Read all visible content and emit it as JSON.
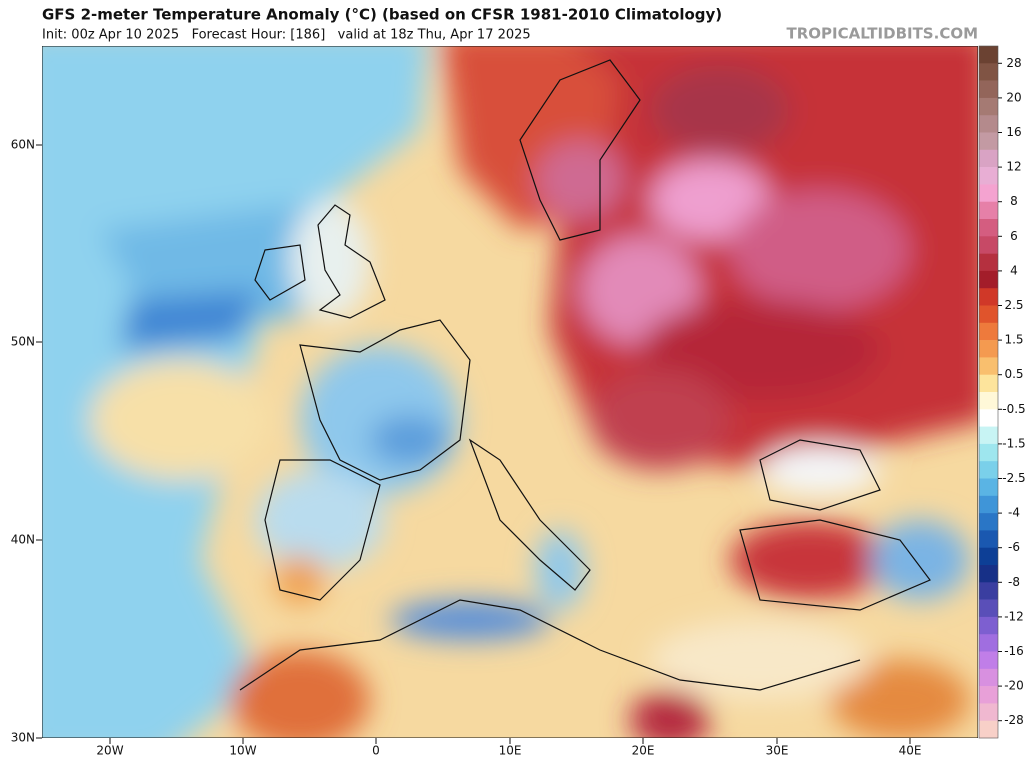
{
  "header": {
    "title": "GFS 2-meter Temperature Anomaly (°C) (based on CFSR 1981-2010 Climatology)",
    "subtitle": "Init: 00z Apr 10 2025   Forecast Hour: [186]   valid at 18z Thu, Apr 17 2025",
    "watermark": "TROPICALTIDBITS.COM"
  },
  "map": {
    "lat_labels": [
      "60N",
      "50N",
      "40N",
      "30N"
    ],
    "lon_labels": [
      "20W",
      "10W",
      "0",
      "10E",
      "20E",
      "30E",
      "40E"
    ]
  },
  "colorbar": {
    "labels": [
      "28",
      "20",
      "16",
      "12",
      "8",
      "6",
      "4",
      "2.5",
      "1.5",
      "0.5",
      "-0.5",
      "-1.5",
      "-2.5",
      "-4",
      "-6",
      "-8",
      "-12",
      "-16",
      "-20",
      "-28"
    ],
    "colors": [
      "#6b4232",
      "#805444",
      "#93655a",
      "#a57a73",
      "#b48a8c",
      "#c39aa3",
      "#d9a3c4",
      "#e8aed4",
      "#f4a3d0",
      "#e680a8",
      "#d45d80",
      "#c74966",
      "#b5303f",
      "#a31d2a",
      "#d03828",
      "#e0542c",
      "#ee7a3c",
      "#f49a50",
      "#f9bf6e",
      "#fde49c",
      "#fff8d8",
      "#ffffff",
      "#c8f4f4",
      "#9ee6ee",
      "#7ad0ea",
      "#5ab4e4",
      "#3f95d8",
      "#2a76c6",
      "#1a58b0",
      "#0d3f96",
      "#173087",
      "#3a3ea0",
      "#5a4fb8",
      "#7d5fd0",
      "#a06ee0",
      "#c07ee8",
      "#d890e0",
      "#e8a0d8",
      "#f0b8d0",
      "#f8d0c8"
    ]
  }
}
